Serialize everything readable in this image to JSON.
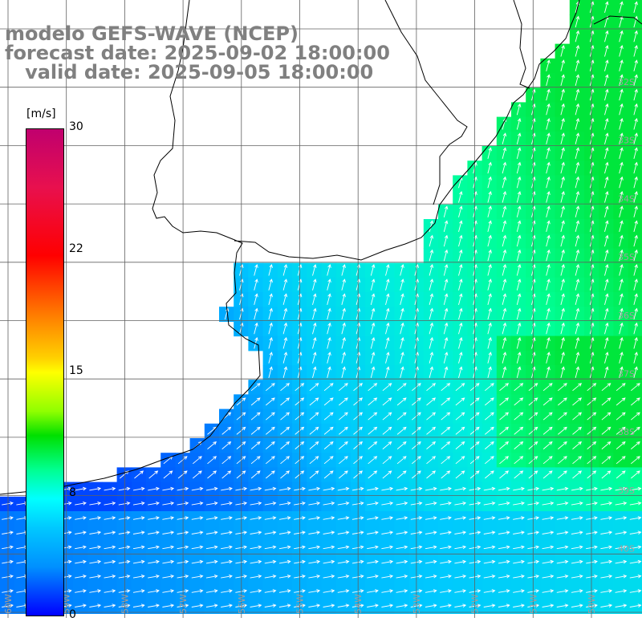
{
  "header": {
    "line1": "modelo GEFS-WAVE (NCEP)",
    "line2": "forecast date: 2025-09-02 18:00:00",
    "line3": "   valid date: 2025-09-05 18:00:00"
  },
  "colorbar": {
    "unit": "[m/s]",
    "ticks": [
      {
        "label": "30",
        "value": 30
      },
      {
        "label": "22",
        "value": 22
      },
      {
        "label": "15",
        "value": 15
      },
      {
        "label": "8",
        "value": 8
      },
      {
        "label": "0",
        "value": 0
      }
    ],
    "colors": {
      "top": "#c0006e",
      "high": "#ff0000",
      "mid": "#ffff00",
      "green": "#00e000",
      "cyan": "#00ffff",
      "low": "#0000ff"
    }
  },
  "map": {
    "lat_labels": [
      "32S",
      "33S",
      "34S",
      "35S",
      "36S",
      "37S",
      "38S",
      "39S",
      "40S"
    ],
    "lon_labels": [
      "60W",
      "59W",
      "58W",
      "57W",
      "56W",
      "55W",
      "54W",
      "53W",
      "52W",
      "51W",
      "50W"
    ],
    "land_color": "#ffffff",
    "arrow_color": "#ffffff",
    "coast_color": "#000000",
    "grid_color": "#606060"
  }
}
